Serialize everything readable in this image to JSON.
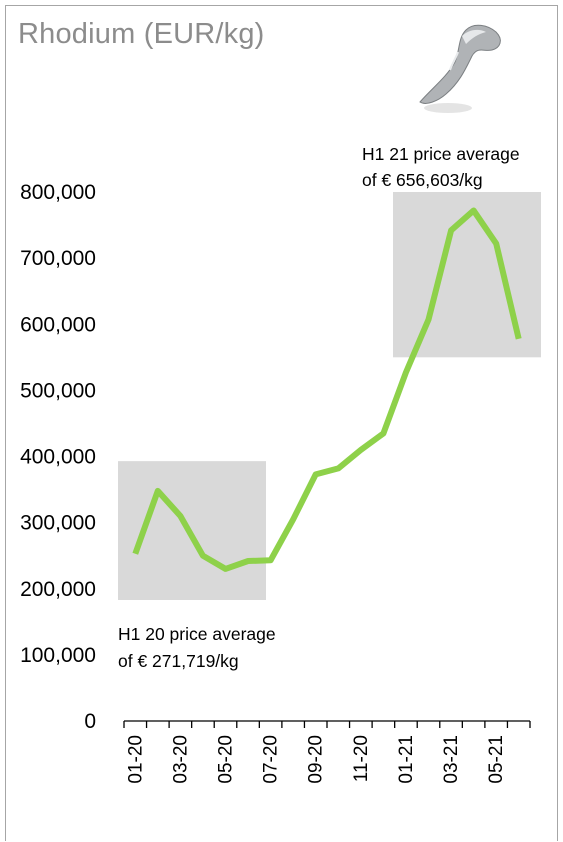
{
  "title": "Rhodium (EUR/kg)",
  "chart_data": {
    "type": "line",
    "title": "Rhodium (EUR/kg)",
    "xlabel": "",
    "ylabel": "",
    "ylim": [
      0,
      800000
    ],
    "yticks": [
      "0",
      "100,000",
      "200,000",
      "300,000",
      "400,000",
      "500,000",
      "600,000",
      "700,000",
      "800,000"
    ],
    "xticks_shown": [
      "01-20",
      "03-20",
      "05-20",
      "07-20",
      "09-20",
      "11-20",
      "01-21",
      "03-21",
      "05-21"
    ],
    "categories": [
      "01-20",
      "02-20",
      "03-20",
      "04-20",
      "05-20",
      "06-20",
      "07-20",
      "08-20",
      "09-20",
      "10-20",
      "11-20",
      "12-20",
      "01-21",
      "02-21",
      "03-21",
      "04-21",
      "05-21",
      "06-21"
    ],
    "series": [
      {
        "color": "#8ed14a",
        "values": [
          253000,
          348000,
          310000,
          250000,
          230000,
          242000,
          243000,
          305000,
          373000,
          382000,
          410000,
          435000,
          527000,
          607000,
          742000,
          772000,
          722000,
          578000
        ]
      }
    ],
    "grid": false,
    "highlights": [
      {
        "label_line1": "H1 20 price average",
        "label_line2": "of € 271,719/kg",
        "from": "01-20",
        "to": "06-20",
        "y_range": [
          183000,
          393000
        ]
      },
      {
        "label_line1": "H1 21 price average",
        "label_line2": "of € 656,603/kg",
        "from": "01-21",
        "to": "06-21",
        "y_range": [
          550000,
          800000
        ]
      }
    ],
    "colors": {
      "line": "#8ed14a",
      "highlight": "#d9d9d9",
      "title": "#8c8c8c",
      "axis": "#000000"
    }
  },
  "icons": {
    "title_image": "rhodium-nugget-icon"
  }
}
